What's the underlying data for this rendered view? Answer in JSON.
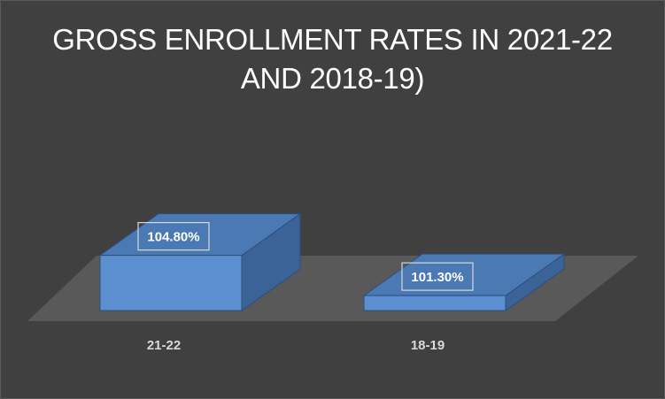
{
  "chart_data": {
    "type": "bar",
    "title": "GROSS ENROLLMENT RATES IN 2021-22 AND 2018-19)",
    "categories": [
      "21-22",
      "18-19"
    ],
    "values": [
      104.8,
      101.3
    ],
    "data_labels": [
      "104.80%",
      "101.30%"
    ],
    "ylim": [
      100,
      106
    ],
    "xlabel": "",
    "ylabel": "",
    "grid": false,
    "legend": "none",
    "three_d": true,
    "colors": {
      "background": "#404040",
      "floor": "#595959",
      "bar_front": "#5b8fd0",
      "bar_top": "#4a79b4",
      "bar_side": "#3b6398",
      "edge": "#2d4f7c",
      "label_text": "#d9d9d9",
      "title_text": "#ffffff"
    }
  }
}
